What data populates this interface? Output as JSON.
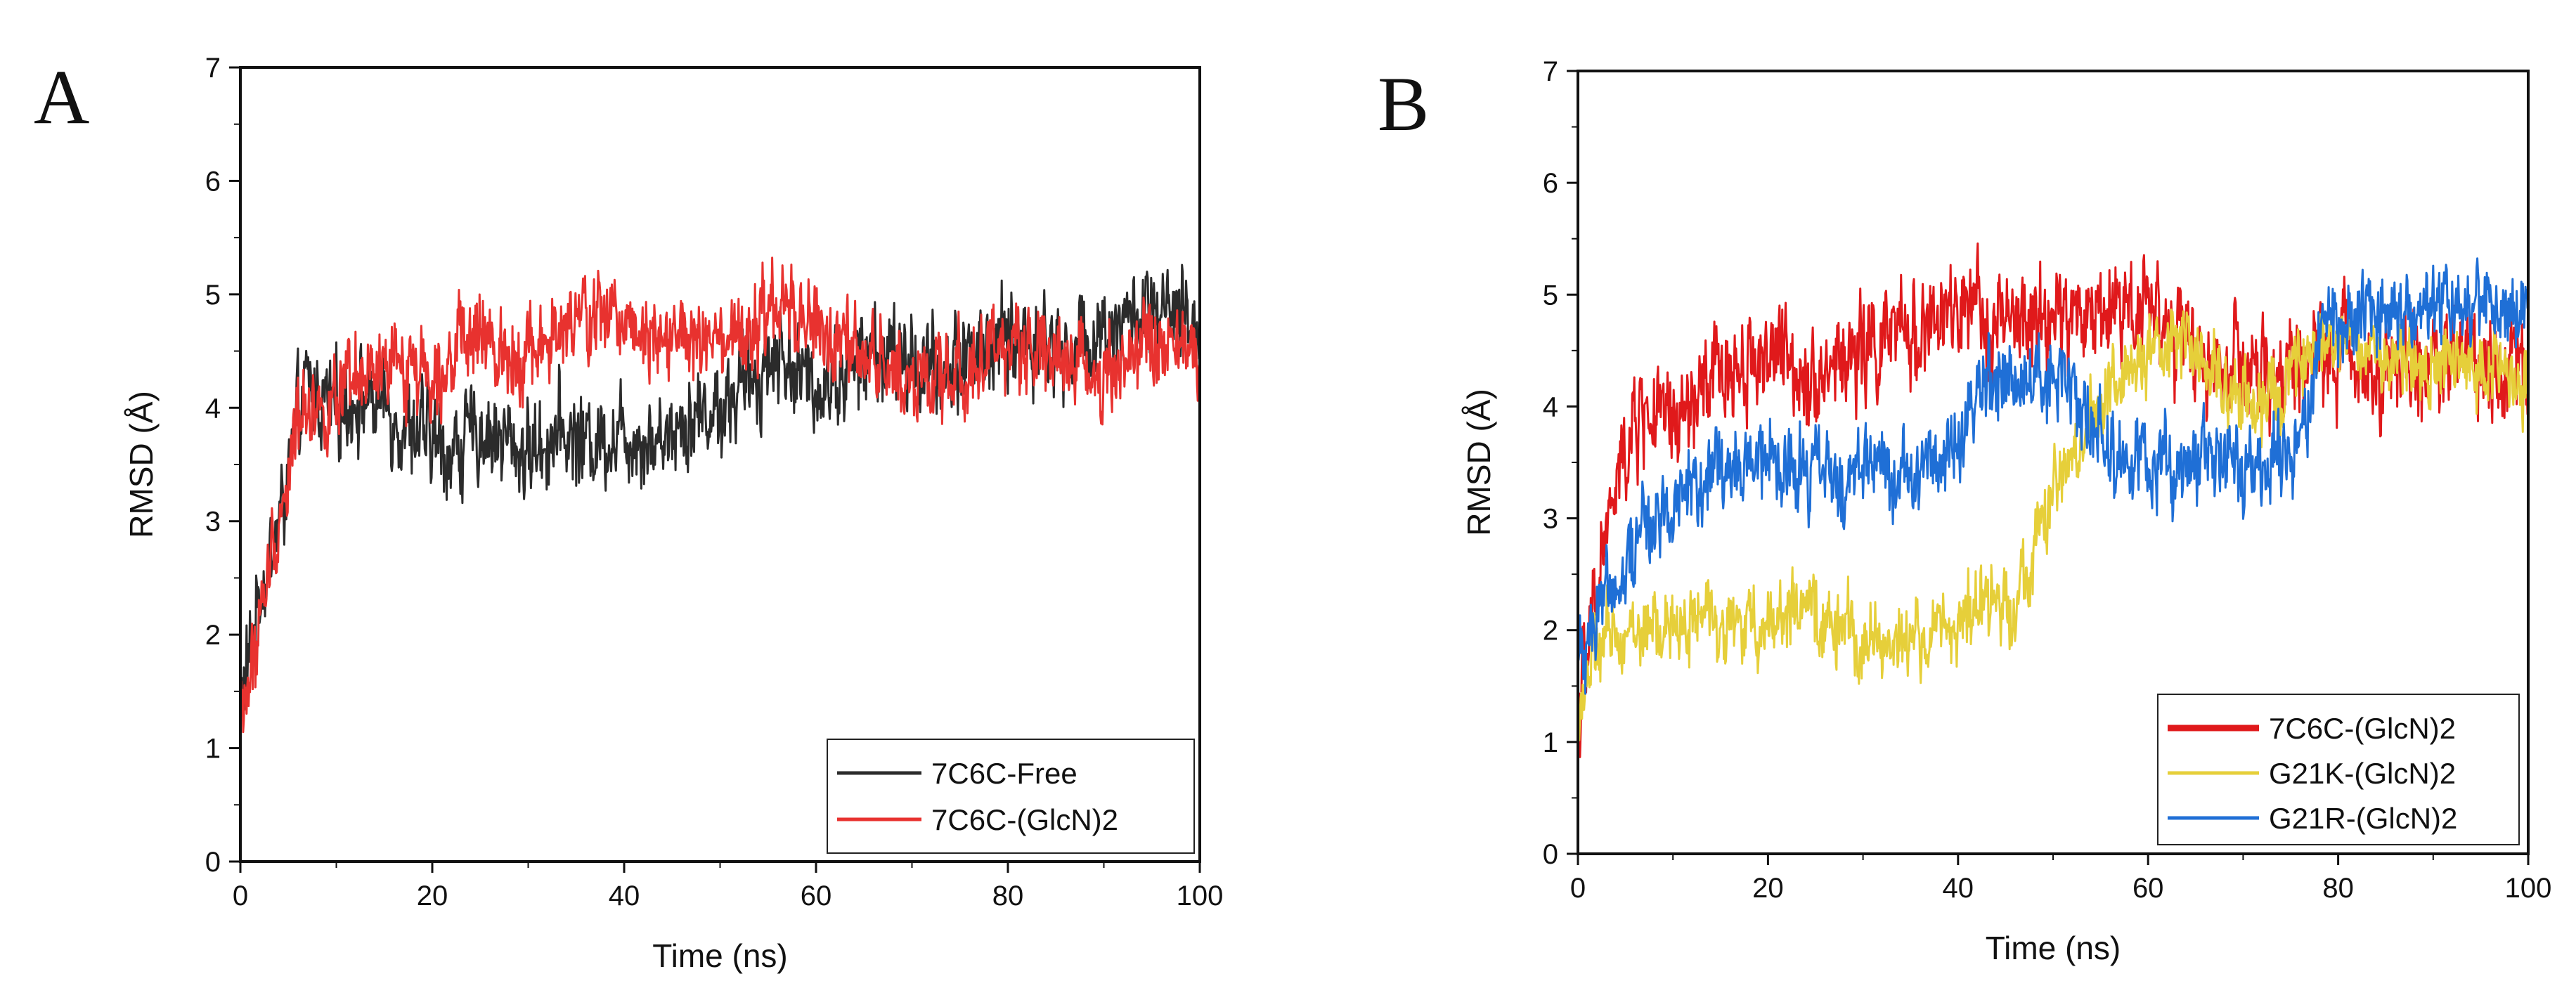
{
  "chart_data": [
    {
      "type": "line",
      "panel_label": "A",
      "xlabel": "Time (ns)",
      "ylabel": "RMSD (Å)",
      "xlim": [
        0,
        100
      ],
      "ylim": [
        0,
        7
      ],
      "xticks": [
        0,
        20,
        40,
        60,
        80,
        100
      ],
      "yticks": [
        0,
        1,
        2,
        3,
        4,
        5,
        6,
        7
      ],
      "legend_position": "bottom-right",
      "series": [
        {
          "name": "7C6C-Free",
          "color": "#2b2b2b",
          "x": [
            0,
            1,
            2,
            3,
            4,
            5,
            6,
            7,
            8,
            10,
            12,
            15,
            18,
            20,
            22,
            25,
            28,
            30,
            33,
            36,
            40,
            43,
            46,
            50,
            53,
            56,
            58,
            60,
            63,
            66,
            70,
            73,
            76,
            80,
            83,
            86,
            90,
            93,
            96,
            100
          ],
          "values": [
            1.4,
            1.8,
            2.4,
            2.6,
            3.0,
            3.4,
            3.9,
            4.2,
            4.1,
            4.0,
            4.1,
            4.0,
            3.8,
            3.7,
            3.6,
            3.8,
            3.7,
            3.6,
            3.8,
            3.7,
            3.8,
            3.7,
            3.9,
            4.0,
            4.2,
            4.5,
            4.3,
            4.2,
            4.3,
            4.5,
            4.4,
            4.3,
            4.5,
            4.6,
            4.6,
            4.5,
            4.7,
            4.8,
            4.8,
            4.7
          ],
          "noise": 0.5
        },
        {
          "name": "7C6C-(GlcN)2",
          "color": "#e8322f",
          "x": [
            0,
            1,
            2,
            3,
            4,
            5,
            6,
            7,
            8,
            10,
            12,
            15,
            18,
            20,
            22,
            25,
            28,
            30,
            33,
            36,
            40,
            43,
            46,
            50,
            53,
            56,
            58,
            60,
            63,
            66,
            70,
            73,
            76,
            80,
            83,
            86,
            90,
            93,
            96,
            100
          ],
          "values": [
            1.3,
            1.6,
            2.1,
            2.6,
            3.0,
            3.4,
            3.9,
            4.1,
            4.0,
            4.0,
            4.2,
            4.3,
            4.4,
            4.3,
            4.5,
            4.6,
            4.5,
            4.5,
            4.6,
            4.8,
            4.8,
            4.7,
            4.6,
            4.5,
            4.6,
            4.9,
            4.8,
            4.7,
            4.5,
            4.4,
            4.3,
            4.2,
            4.4,
            4.5,
            4.6,
            4.4,
            4.3,
            4.5,
            4.5,
            4.5
          ],
          "noise": 0.45
        }
      ]
    },
    {
      "type": "line",
      "panel_label": "B",
      "xlabel": "Time (ns)",
      "ylabel": "RMSD (Å)",
      "xlim": [
        0,
        100
      ],
      "ylim": [
        0,
        7
      ],
      "xticks": [
        0,
        20,
        40,
        60,
        80,
        100
      ],
      "yticks": [
        0,
        1,
        2,
        3,
        4,
        5,
        6,
        7
      ],
      "legend_position": "bottom-right",
      "series": [
        {
          "name": "7C6C-(GlcN)2",
          "color": "#e0191b",
          "x": [
            0,
            1,
            2,
            3,
            4,
            5,
            6,
            7,
            8,
            10,
            12,
            15,
            18,
            20,
            22,
            25,
            28,
            30,
            33,
            36,
            40,
            43,
            46,
            50,
            53,
            56,
            58,
            60,
            63,
            66,
            70,
            73,
            76,
            80,
            83,
            86,
            90,
            93,
            96,
            100
          ],
          "values": [
            1.3,
            1.7,
            2.4,
            2.9,
            3.2,
            3.6,
            3.8,
            4.0,
            3.9,
            3.8,
            4.0,
            4.3,
            4.4,
            4.5,
            4.4,
            4.3,
            4.4,
            4.5,
            4.6,
            4.7,
            4.8,
            4.8,
            4.7,
            4.8,
            4.8,
            4.9,
            4.9,
            5.0,
            4.6,
            4.4,
            4.3,
            4.2,
            4.4,
            4.5,
            4.4,
            4.3,
            4.4,
            4.5,
            4.4,
            4.4
          ],
          "noise": 0.55
        },
        {
          "name": "G21K-(GlcN)2",
          "color": "#e6cf3a",
          "x": [
            0,
            1,
            2,
            3,
            4,
            5,
            6,
            8,
            10,
            12,
            15,
            18,
            20,
            22,
            25,
            28,
            30,
            33,
            36,
            40,
            43,
            46,
            48,
            50,
            53,
            56,
            58,
            60,
            63,
            66,
            70,
            73,
            76,
            80,
            83,
            86,
            90,
            93,
            96,
            100
          ],
          "values": [
            1.3,
            1.6,
            1.8,
            1.9,
            2.0,
            2.0,
            2.0,
            2.0,
            2.0,
            2.1,
            2.1,
            2.0,
            2.1,
            2.2,
            2.1,
            2.0,
            1.9,
            1.9,
            1.9,
            2.1,
            2.2,
            2.3,
            2.7,
            3.2,
            3.7,
            4.2,
            4.3,
            4.4,
            4.6,
            4.4,
            4.1,
            4.0,
            4.3,
            4.6,
            4.5,
            4.4,
            4.4,
            4.3,
            4.4,
            4.2
          ],
          "noise": 0.4
        },
        {
          "name": "G21R-(GlcN)2",
          "color": "#1f6fd6",
          "x": [
            0,
            1,
            2,
            3,
            4,
            5,
            6,
            8,
            10,
            12,
            15,
            18,
            20,
            22,
            25,
            28,
            30,
            33,
            36,
            40,
            43,
            46,
            50,
            53,
            56,
            58,
            60,
            63,
            66,
            70,
            73,
            76,
            78,
            80,
            83,
            86,
            90,
            93,
            96,
            100
          ],
          "values": [
            1.7,
            2.0,
            2.2,
            2.4,
            2.5,
            2.6,
            2.8,
            3.0,
            3.2,
            3.3,
            3.4,
            3.5,
            3.5,
            3.4,
            3.4,
            3.3,
            3.5,
            3.4,
            3.5,
            3.6,
            4.2,
            4.4,
            4.2,
            4.0,
            3.6,
            3.5,
            3.5,
            3.4,
            3.6,
            3.4,
            3.5,
            3.6,
            4.6,
            4.8,
            4.9,
            4.8,
            4.9,
            5.0,
            4.9,
            4.8
          ],
          "noise": 0.45
        }
      ]
    }
  ]
}
